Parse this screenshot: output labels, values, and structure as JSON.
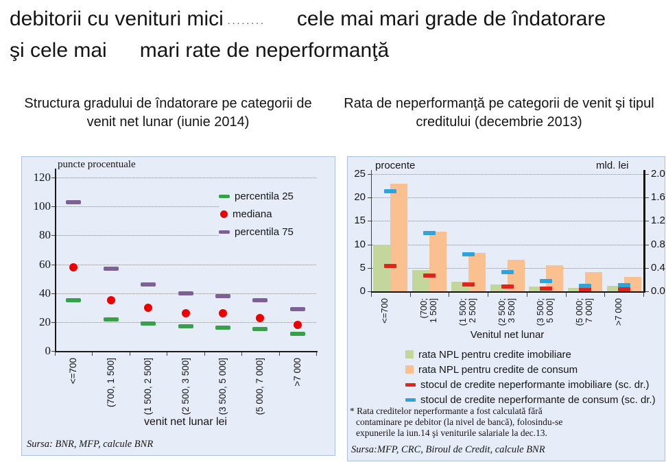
{
  "page_title": {
    "line1_part1": "debitorii cu venituri mici",
    "dots": "........",
    "line1_part2": "cele mai mari grade de îndatorare",
    "line2_part1": "şi cele mai",
    "line2_part2": "mari rate de neperformanţă"
  },
  "chart_data": [
    {
      "type": "scatter",
      "title": "Structura gradului de îndatorare pe categorii de venit net lunar (iunie 2014)",
      "unit_label": "puncte procentuale",
      "xlabel": "venit net lunar lei",
      "source": "Sursa: BNR, MFP, calcule BNR",
      "ylim": [
        0,
        120
      ],
      "ytick_step": 20,
      "grid": true,
      "legend_position": "upper-right",
      "categories": [
        "<=700",
        "(700, 1 500]",
        "(1 500, 2 500]",
        "(2 500, 3 500]",
        "(3 500, 5 000]",
        "(5 000, 7 000]",
        ">7 000"
      ],
      "series": [
        {
          "name": "percentila 25",
          "marker": "dash",
          "color": "#38a04a",
          "values": [
            35,
            22,
            19,
            17,
            16,
            15,
            12
          ]
        },
        {
          "name": "mediana",
          "marker": "dot",
          "color": "#ee0000",
          "values": [
            58,
            35,
            30,
            26,
            26,
            23,
            18
          ]
        },
        {
          "name": "percentila 75",
          "marker": "dash",
          "color": "#7d6096",
          "values": [
            103,
            57,
            46,
            40,
            38,
            35,
            29
          ]
        }
      ]
    },
    {
      "type": "bar",
      "title": "Rata de neperformanţă pe categorii de venit şi tipul creditului  (decembrie 2013)",
      "left_axis_label": "procente",
      "right_axis_label": "mld. lei",
      "xlabel": "Venitul net lunar",
      "source": "Sursa:MFP, CRC, Biroul de Credit, calcule BNR",
      "footnote_lines": [
        "* Rata creditelor neperformante a fost calculată fără",
        "contaminare pe debitor (la nivel de bancă), folosindu-se",
        "expunerile la iun.14 şi veniturile salariale la dec.13."
      ],
      "left_ylim": [
        0,
        25
      ],
      "left_ytick_step": 5,
      "right_ylim": [
        0,
        2.0
      ],
      "right_ytick_step": 0.4,
      "grid": true,
      "categories": [
        [
          "<=700"
        ],
        [
          "(700;",
          "1 500]"
        ],
        [
          "(1 500;",
          "2 500]"
        ],
        [
          "(2 500;",
          "3 500]"
        ],
        [
          "(3 500;",
          "5 000]"
        ],
        [
          "(5 000;",
          "7 000]"
        ],
        [
          ">7 000"
        ]
      ],
      "bar_series": [
        {
          "name": "rata NPL pentru credite imobiliare",
          "axis": "left",
          "color": "#c3d69b",
          "values": [
            10.0,
            4.5,
            2.0,
            1.4,
            1.0,
            0.7,
            1.1
          ]
        },
        {
          "name": "rata NPL pentru credite de consum",
          "axis": "left",
          "color": "#fac08f",
          "values": [
            23.0,
            12.7,
            8.2,
            6.7,
            5.5,
            4.1,
            3.0
          ]
        }
      ],
      "line_series": [
        {
          "name": "stocul de credite neperformante imobiliare (sc. dr.)",
          "axis": "right",
          "marker": "dash",
          "color": "#e0261c",
          "values": [
            0.43,
            0.27,
            0.12,
            0.08,
            0.05,
            0.04,
            0.04
          ]
        },
        {
          "name": "stocul de credite neperformante de consum (sc. dr.)",
          "axis": "right",
          "marker": "dash",
          "color": "#2fa3dc",
          "values": [
            1.71,
            1.0,
            0.63,
            0.33,
            0.18,
            0.09,
            0.1
          ]
        }
      ]
    }
  ]
}
